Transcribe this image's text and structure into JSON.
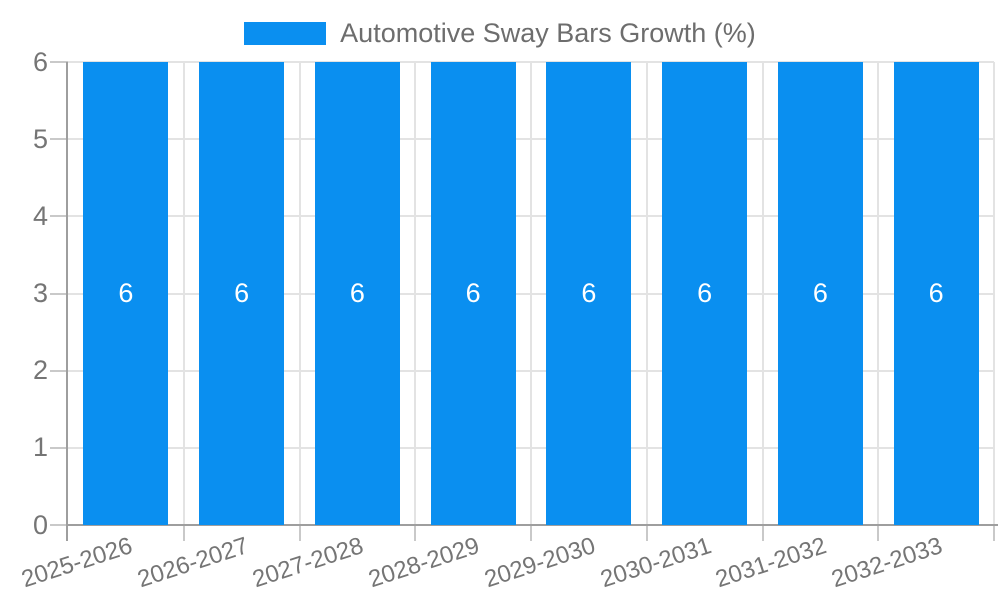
{
  "chart_data": {
    "type": "bar",
    "title": "Automotive Sway Bars Growth (%)",
    "categories": [
      "2025-2026",
      "2026-2027",
      "2027-2028",
      "2028-2029",
      "2029-2030",
      "2030-2031",
      "2031-2032",
      "2032-2033"
    ],
    "values": [
      6,
      6,
      6,
      6,
      6,
      6,
      6,
      6
    ],
    "bar_labels": [
      "6",
      "6",
      "6",
      "6",
      "6",
      "6",
      "6",
      "6"
    ],
    "xlabel": "",
    "ylabel": "",
    "ylim": [
      0,
      6
    ],
    "yticks": [
      0,
      1,
      2,
      3,
      4,
      5,
      6
    ],
    "grid": true,
    "legend_position": "top",
    "colors": {
      "bar": "#0a8ff0",
      "bar_label": "#ffffff",
      "axis_line": "#9e9e9e",
      "gridline": "#e3e3e3",
      "tick_mark": "#c9c9c9",
      "tick_label": "#757575",
      "legend_text": "#6d6d6d",
      "background": "#ffffff"
    }
  }
}
